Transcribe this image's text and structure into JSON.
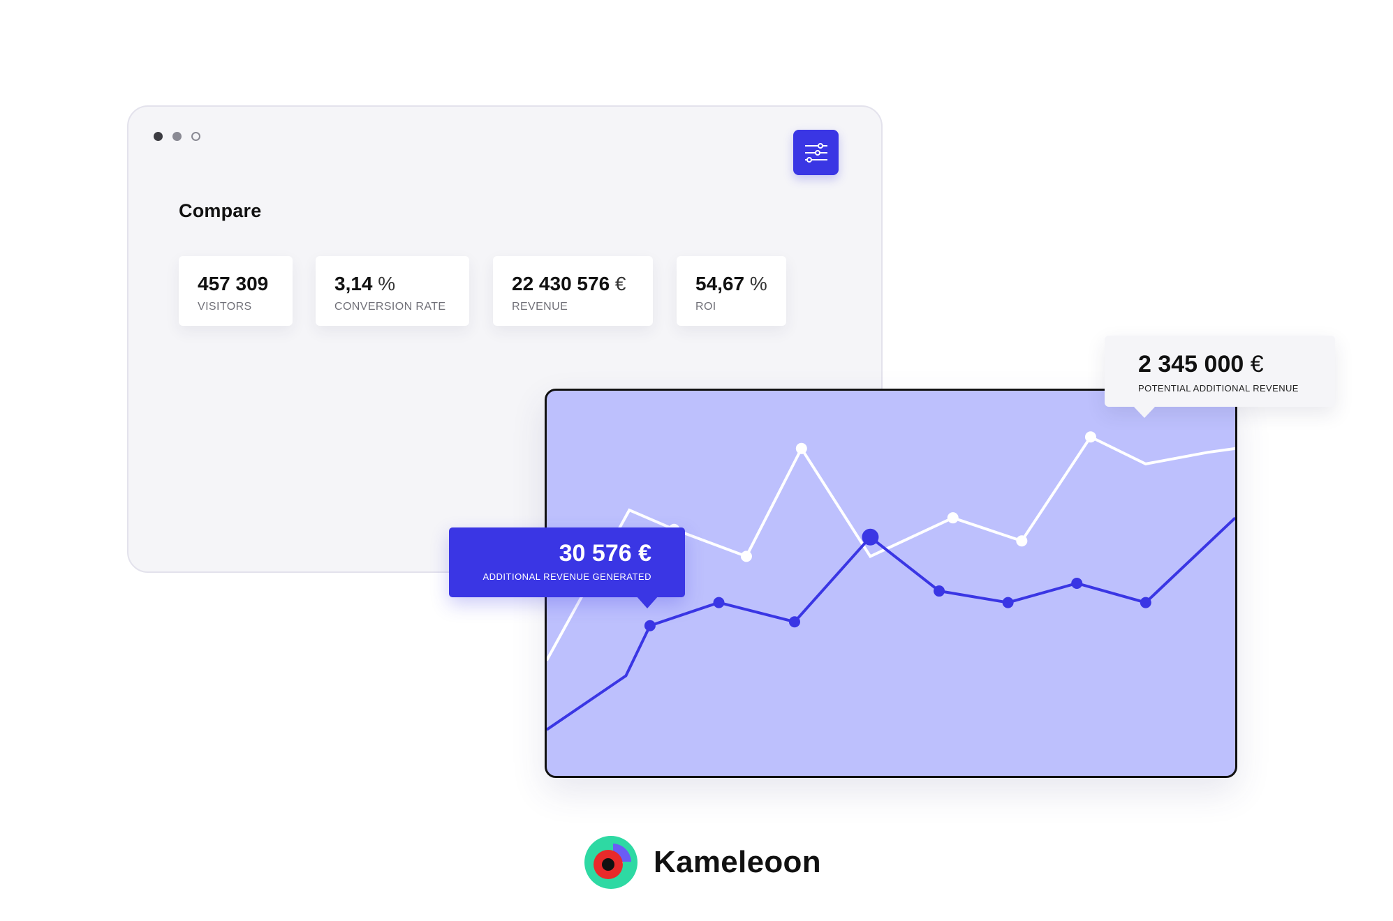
{
  "window": {
    "title": "Compare",
    "controls": [
      "window-dot-dark",
      "window-dot-gray",
      "window-dot-outline"
    ],
    "settings_icon": "sliders-icon",
    "accent": "#3a36e4"
  },
  "stats": [
    {
      "value": "457 309",
      "unit": "",
      "label": "VISITORS"
    },
    {
      "value": "3,14",
      "unit": "%",
      "label": "CONVERSION RATE"
    },
    {
      "value": "22 430 576",
      "unit": "€",
      "label": "REVENUE"
    },
    {
      "value": "54,67",
      "unit": "%",
      "label": "ROI"
    }
  ],
  "tooltips": {
    "additional": {
      "value": "30 576 €",
      "label": "ADDITIONAL REVENUE GENERATED",
      "color": "#3a36e4"
    },
    "potential": {
      "value": "2 345 000",
      "unit": "€",
      "label": "POTENTIAL ADDITIONAL REVENUE"
    }
  },
  "chart_data": {
    "type": "line",
    "title": "",
    "xlabel": "",
    "ylabel": "",
    "grid": false,
    "background": "#bdc0fd",
    "ylim": [
      0,
      100
    ],
    "series": [
      {
        "color": "#ffffff",
        "x": [
          0,
          12,
          18.5,
          29,
          37,
          47,
          59,
          69,
          79,
          87,
          96,
          100
        ],
        "y": [
          30,
          69,
          64,
          57,
          85,
          57,
          67,
          61,
          88,
          81,
          84,
          85
        ],
        "markers": [
          false,
          false,
          true,
          true,
          true,
          false,
          true,
          true,
          true,
          false,
          false,
          false
        ]
      },
      {
        "color": "#3a36e4",
        "x": [
          0,
          11.5,
          15,
          25,
          36,
          47,
          57,
          67,
          77,
          87,
          100
        ],
        "y": [
          12,
          26,
          39,
          45,
          40,
          62,
          48,
          45,
          50,
          45,
          67
        ],
        "markers": [
          false,
          false,
          true,
          true,
          true,
          true,
          true,
          true,
          true,
          true,
          false
        ],
        "highlight_index": 5
      }
    ]
  },
  "brand": {
    "name": "Kameleoon",
    "logo_icon": "kameleoon-logo-icon",
    "colors": [
      "#2ed9a3",
      "#6a5cf5",
      "#e82a2a",
      "#111111"
    ]
  }
}
